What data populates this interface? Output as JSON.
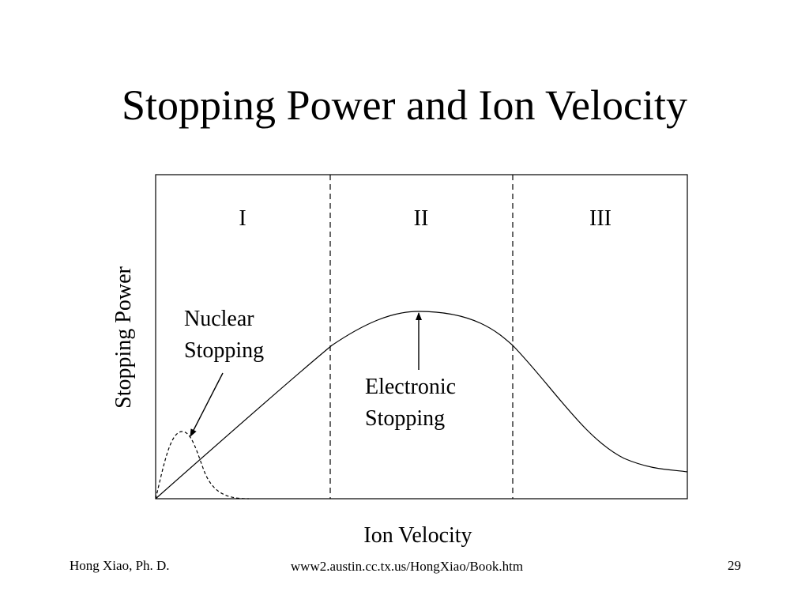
{
  "slide": {
    "title": "Stopping Power and Ion Velocity"
  },
  "diagram": {
    "regions": [
      "I",
      "II",
      "III"
    ],
    "y_axis_label": "Stopping Power",
    "x_axis_label": "Ion Velocity",
    "annotations": {
      "nuclear": [
        "Nuclear",
        "Stopping"
      ],
      "electronic": [
        "Electronic",
        "Stopping"
      ]
    },
    "curves": {
      "nuclear_line_style": "dashed",
      "electronic_line_style": "solid"
    }
  },
  "footer": {
    "author": "Hong Xiao, Ph. D.",
    "url": "www2.austin.cc.tx.us/HongXiao/Book.htm",
    "page_number": "29"
  }
}
